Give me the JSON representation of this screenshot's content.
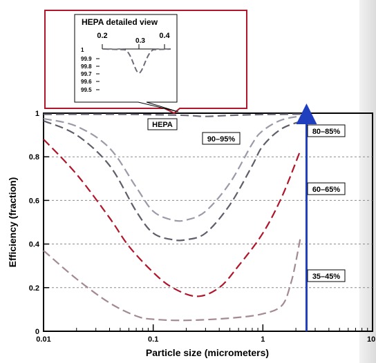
{
  "chart_data": {
    "type": "line",
    "xlabel": "Particle size (micrometers)",
    "ylabel": "Efficiency (fraction)",
    "x_scale": "log",
    "xlim": [
      0.01,
      10
    ],
    "ylim": [
      0,
      1
    ],
    "x_ticks": [
      {
        "value": 0.01,
        "label": "0.01"
      },
      {
        "value": 0.1,
        "label": "0.1"
      },
      {
        "value": 1,
        "label": "1"
      },
      {
        "value": 10,
        "label": "10"
      }
    ],
    "y_ticks": [
      {
        "value": 0,
        "label": "0"
      },
      {
        "value": 0.2,
        "label": "0.2"
      },
      {
        "value": 0.4,
        "label": "0.4"
      },
      {
        "value": 0.6,
        "label": "0.6"
      },
      {
        "value": 0.8,
        "label": "0.8"
      },
      {
        "value": 1,
        "label": "1"
      }
    ],
    "grid": "horizontal dashed",
    "series": [
      {
        "name": "HEPA",
        "color": "#6b6b7a",
        "points": [
          [
            0.01,
            0.995
          ],
          [
            0.05,
            0.995
          ],
          [
            0.1,
            0.993
          ],
          [
            0.2,
            0.99
          ],
          [
            0.3,
            0.985
          ],
          [
            0.5,
            0.99
          ],
          [
            1,
            0.994
          ],
          [
            2.5,
            0.996
          ]
        ]
      },
      {
        "name": "90–95%",
        "color": "#9a9aa8",
        "points": [
          [
            0.01,
            0.975
          ],
          [
            0.02,
            0.94
          ],
          [
            0.04,
            0.84
          ],
          [
            0.07,
            0.66
          ],
          [
            0.1,
            0.55
          ],
          [
            0.15,
            0.51
          ],
          [
            0.2,
            0.51
          ],
          [
            0.3,
            0.55
          ],
          [
            0.5,
            0.68
          ],
          [
            0.8,
            0.86
          ],
          [
            1,
            0.92
          ],
          [
            1.5,
            0.97
          ],
          [
            2.5,
            0.99
          ]
        ]
      },
      {
        "name": "80–85%",
        "color": "#5e5e6a",
        "points": [
          [
            0.01,
            0.965
          ],
          [
            0.02,
            0.9
          ],
          [
            0.04,
            0.76
          ],
          [
            0.07,
            0.55
          ],
          [
            0.1,
            0.45
          ],
          [
            0.15,
            0.42
          ],
          [
            0.2,
            0.42
          ],
          [
            0.3,
            0.45
          ],
          [
            0.5,
            0.58
          ],
          [
            0.8,
            0.76
          ],
          [
            1,
            0.85
          ],
          [
            1.5,
            0.93
          ],
          [
            2.5,
            0.97
          ]
        ]
      },
      {
        "name": "60–65%",
        "color": "#b0162a",
        "points": [
          [
            0.01,
            0.88
          ],
          [
            0.02,
            0.72
          ],
          [
            0.04,
            0.52
          ],
          [
            0.06,
            0.39
          ],
          [
            0.1,
            0.27
          ],
          [
            0.15,
            0.2
          ],
          [
            0.25,
            0.16
          ],
          [
            0.4,
            0.2
          ],
          [
            0.6,
            0.3
          ],
          [
            1,
            0.45
          ],
          [
            1.5,
            0.62
          ],
          [
            2.2,
            0.83
          ]
        ]
      },
      {
        "name": "35–45%",
        "color": "#a48a90",
        "points": [
          [
            0.01,
            0.37
          ],
          [
            0.02,
            0.24
          ],
          [
            0.04,
            0.13
          ],
          [
            0.07,
            0.07
          ],
          [
            0.1,
            0.055
          ],
          [
            0.2,
            0.05
          ],
          [
            0.5,
            0.06
          ],
          [
            1,
            0.08
          ],
          [
            1.5,
            0.12
          ],
          [
            1.8,
            0.22
          ],
          [
            2.0,
            0.32
          ],
          [
            2.2,
            0.43
          ]
        ]
      }
    ],
    "annotations": {
      "hepa_label": "HEPA",
      "curve_labels": [
        "90–95%",
        "80–85%",
        "60–65%",
        "35–45%"
      ],
      "marker": {
        "x": 2.5,
        "color": "#1f3fbf",
        "note": "vertical arrow"
      }
    },
    "inset": {
      "title": "HEPA detailed view",
      "x_ticks": [
        "0.2",
        "0.3",
        "0.4"
      ],
      "y_ticks": [
        "1",
        "99.9",
        "99.8",
        "99.7",
        "99.6",
        "99.5"
      ],
      "callout_border_color": "#b0162a"
    }
  }
}
